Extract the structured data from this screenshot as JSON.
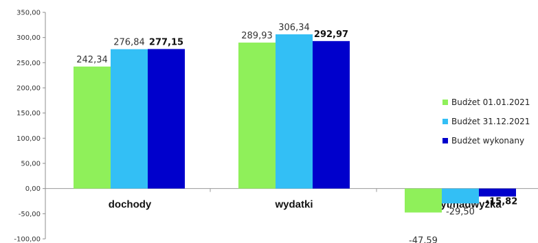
{
  "chart_data": {
    "type": "bar",
    "categories": [
      "dochody",
      "wydatki",
      "deficyt/nadwyżka"
    ],
    "series": [
      {
        "name": "Budżet 01.01.2021",
        "color": "#8FF05A",
        "values": [
          242.34,
          289.93,
          -47.59
        ],
        "labels": [
          "242,34",
          "289,93",
          "-47,59"
        ],
        "bold": false
      },
      {
        "name": "Budżet 31.12.2021",
        "color": "#33BFF5",
        "values": [
          276.84,
          306.34,
          -29.5
        ],
        "labels": [
          "276,84",
          "306,34",
          "-29,50"
        ],
        "bold": false
      },
      {
        "name": "Budżet wykonany",
        "color": "#0000CC",
        "values": [
          277.15,
          292.97,
          -15.82
        ],
        "labels": [
          "277,15",
          "292,97",
          "-15,82"
        ],
        "bold": true
      }
    ],
    "yticks": [
      "350,00",
      "300,00",
      "250,00",
      "200,00",
      "150,00",
      "100,00",
      "50,00",
      "0,00",
      "-50,00",
      "-100,00"
    ],
    "ylim": [
      -100,
      350
    ],
    "legend_position": "right",
    "grid": false
  }
}
